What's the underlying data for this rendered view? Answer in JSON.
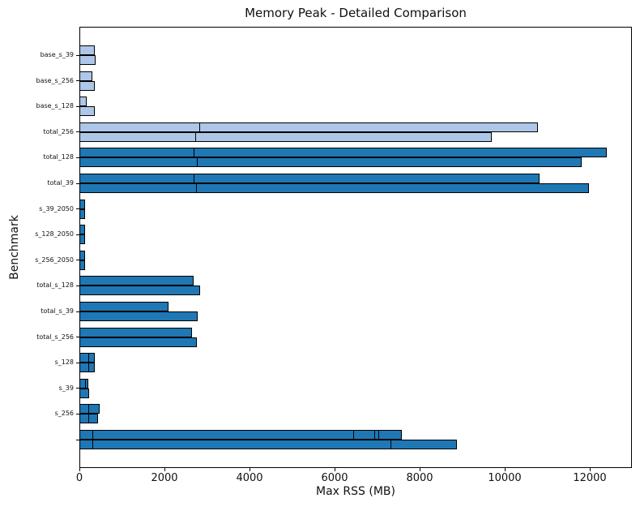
{
  "chart_data": {
    "type": "bar",
    "orientation": "horizontal",
    "title": "Memory Peak - Detailed Comparison",
    "xlabel": "Max RSS (MB)",
    "ylabel": "Benchmark",
    "xlim": [
      0,
      13000
    ],
    "grid": false,
    "legend": "none",
    "colors": {
      "light_bar": "#aec7e8",
      "dark_bar": "#1f77b4",
      "edge": "#000000"
    },
    "xticks": [
      {
        "label": "0",
        "value": 0
      },
      {
        "label": "2000",
        "value": 2000
      },
      {
        "label": "4000",
        "value": 4000
      },
      {
        "label": "6000",
        "value": 6000
      },
      {
        "label": "8000",
        "value": 8000
      },
      {
        "label": "10000",
        "value": 10000
      },
      {
        "label": "12000",
        "value": 12000
      }
    ],
    "note": "Each benchmark has two bar rows; rows may contain overlapping bars whose edges show as internal dividers. Values are Max RSS in MB.",
    "groups": [
      {
        "label": "base_s_39",
        "color": "light_bar",
        "rows": [
          [
            360
          ],
          [
            380
          ]
        ]
      },
      {
        "label": "base_s_256",
        "color": "light_bar",
        "rows": [
          [
            310
          ],
          [
            360
          ]
        ]
      },
      {
        "label": "base_s_128",
        "color": "light_bar",
        "rows": [
          [
            170
          ],
          [
            360
          ]
        ]
      },
      {
        "label": "total_256",
        "color": "light_bar",
        "rows": [
          [
            2820,
            10780
          ],
          [
            2740,
            9700
          ]
        ]
      },
      {
        "label": "total_128",
        "color": "dark_bar",
        "rows": [
          [
            2690,
            12400
          ],
          [
            2780,
            11810
          ]
        ]
      },
      {
        "label": "total_39",
        "color": "dark_bar",
        "rows": [
          [
            2690,
            10820
          ],
          [
            2760,
            11980
          ]
        ]
      },
      {
        "label": "s_39_2050",
        "color": "dark_bar",
        "rows": [
          [
            130
          ],
          [
            130
          ]
        ]
      },
      {
        "label": "s_128_2050",
        "color": "dark_bar",
        "rows": [
          [
            130
          ],
          [
            130
          ]
        ]
      },
      {
        "label": "s_256_2050",
        "color": "dark_bar",
        "rows": [
          [
            130
          ],
          [
            130
          ]
        ]
      },
      {
        "label": "total_s_128",
        "color": "dark_bar",
        "rows": [
          [
            2690
          ],
          [
            2840
          ]
        ]
      },
      {
        "label": "total_s_39",
        "color": "dark_bar",
        "rows": [
          [
            2100
          ],
          [
            2780
          ]
        ]
      },
      {
        "label": "total_s_256",
        "color": "dark_bar",
        "rows": [
          [
            2650
          ],
          [
            2760
          ]
        ]
      },
      {
        "label": "s_128",
        "color": "dark_bar",
        "rows": [
          [
            220,
            360
          ],
          [
            220,
            360
          ]
        ]
      },
      {
        "label": "s_39",
        "color": "dark_bar",
        "rows": [
          [
            150,
            215
          ],
          [
            230
          ]
        ]
      },
      {
        "label": "s_256",
        "color": "dark_bar",
        "rows": [
          [
            215,
            480
          ],
          [
            215,
            440
          ]
        ]
      },
      {
        "label": "",
        "color": "dark_bar",
        "rows": [
          [
            320,
            6440,
            6950,
            7030,
            7580
          ],
          [
            320,
            7330,
            8880
          ]
        ]
      }
    ]
  }
}
